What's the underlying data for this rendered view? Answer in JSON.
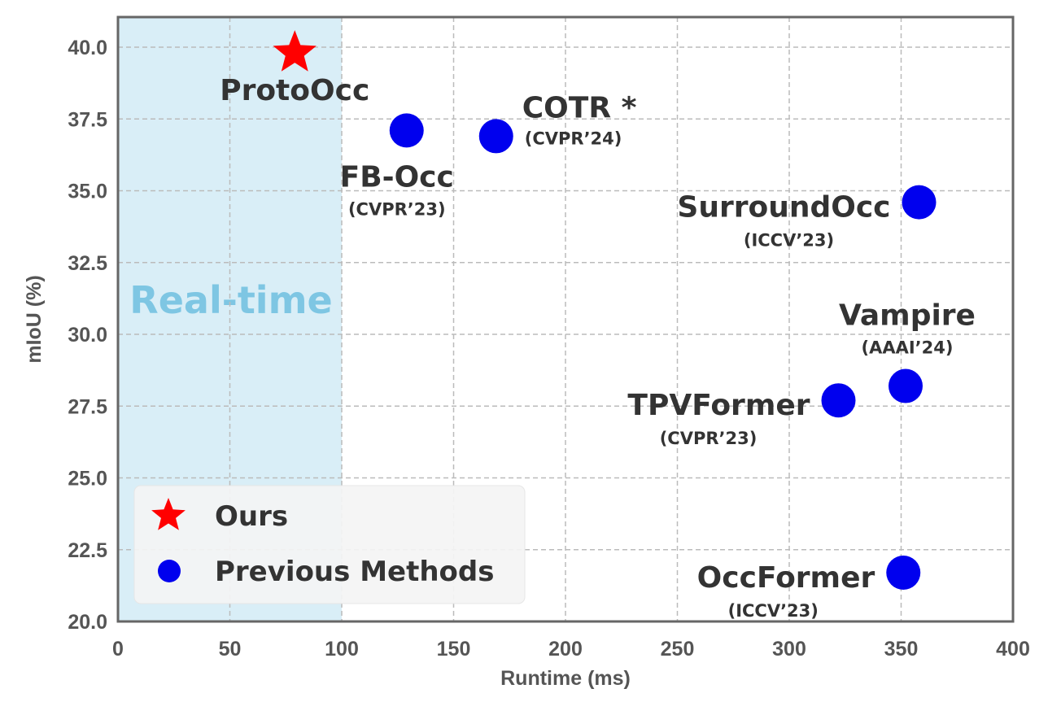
{
  "colors": {
    "ours": "#ff0000",
    "previous": "#0000ee",
    "region": "#d9eef7",
    "region_text": "#7ec6e3",
    "grid": "#bbbbbb",
    "frame": "#666666"
  },
  "chart_data": {
    "type": "scatter",
    "xlabel": "Runtime (ms)",
    "ylabel": "mIoU (%)",
    "xlim": [
      0,
      400
    ],
    "ylim": [
      20,
      41
    ],
    "xticks": [
      "0",
      "50",
      "100",
      "150",
      "200",
      "250",
      "300",
      "350",
      "400"
    ],
    "yticks": [
      "20.0",
      "22.5",
      "25.0",
      "27.5",
      "30.0",
      "32.5",
      "35.0",
      "37.5",
      "40.0"
    ],
    "grid": true,
    "region": {
      "label": "Real-time",
      "x_range": [
        0,
        100
      ]
    },
    "legend": {
      "placement": "bottom-left",
      "entries": [
        {
          "label": "Ours",
          "marker": "star"
        },
        {
          "label": "Previous Methods",
          "marker": "circle"
        }
      ]
    },
    "points": [
      {
        "name": "ProtoOcc",
        "venue": "",
        "x": 79,
        "y": 39.8,
        "group": "ours",
        "label_pos": "below"
      },
      {
        "name": "FB-Occ",
        "venue": "(CVPR’23)",
        "x": 129,
        "y": 37.1,
        "group": "previous",
        "label_pos": "below-left"
      },
      {
        "name": "COTR *",
        "venue": "(CVPR’24)",
        "x": 169,
        "y": 36.9,
        "group": "previous",
        "label_pos": "above-right"
      },
      {
        "name": "SurroundOcc",
        "venue": "(ICCV’23)",
        "x": 358,
        "y": 34.6,
        "group": "previous",
        "label_pos": "left"
      },
      {
        "name": "Vampire",
        "venue": "(AAAI’24)",
        "x": 352,
        "y": 28.2,
        "group": "previous",
        "label_pos": "above"
      },
      {
        "name": "TPVFormer",
        "venue": "(CVPR’23)",
        "x": 322,
        "y": 27.7,
        "group": "previous",
        "label_pos": "left"
      },
      {
        "name": "OccFormer",
        "venue": "(ICCV’23)",
        "x": 351,
        "y": 21.7,
        "group": "previous",
        "label_pos": "left"
      }
    ]
  }
}
